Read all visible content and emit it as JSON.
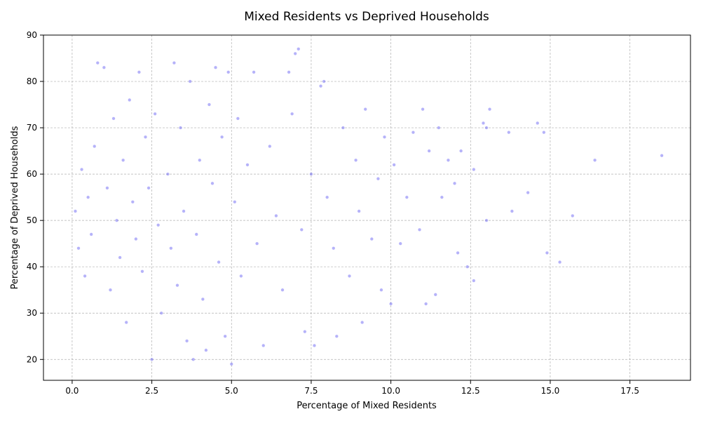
{
  "chart_data": {
    "type": "scatter",
    "title": "Mixed Residents vs Deprived Households",
    "xlabel": "Percentage of Mixed Residents",
    "ylabel": "Percentage of Deprived Households",
    "xlim": [
      -0.9,
      19.4
    ],
    "ylim": [
      15.5,
      90
    ],
    "x_ticks": [
      0.0,
      2.5,
      5.0,
      7.5,
      10.0,
      12.5,
      15.0,
      17.5
    ],
    "x_tick_labels": [
      "0.0",
      "2.5",
      "5.0",
      "7.5",
      "10.0",
      "12.5",
      "15.0",
      "17.5"
    ],
    "y_ticks": [
      20,
      30,
      40,
      50,
      60,
      70,
      80,
      90
    ],
    "y_tick_labels": [
      "20",
      "30",
      "40",
      "50",
      "60",
      "70",
      "80",
      "90"
    ],
    "grid": true,
    "point_color": "#4a45f0",
    "series": [
      {
        "points": [
          [
            0.1,
            52
          ],
          [
            0.2,
            44
          ],
          [
            0.3,
            61
          ],
          [
            0.4,
            38
          ],
          [
            0.5,
            55
          ],
          [
            0.6,
            47
          ],
          [
            0.7,
            66
          ],
          [
            0.8,
            84
          ],
          [
            1.0,
            83
          ],
          [
            1.1,
            57
          ],
          [
            1.2,
            35
          ],
          [
            1.3,
            72
          ],
          [
            1.4,
            50
          ],
          [
            1.5,
            42
          ],
          [
            1.6,
            63
          ],
          [
            1.7,
            28
          ],
          [
            1.8,
            76
          ],
          [
            1.9,
            54
          ],
          [
            2.0,
            46
          ],
          [
            2.1,
            82
          ],
          [
            2.2,
            39
          ],
          [
            2.3,
            68
          ],
          [
            2.4,
            57
          ],
          [
            2.5,
            20
          ],
          [
            2.6,
            73
          ],
          [
            2.7,
            49
          ],
          [
            2.8,
            30
          ],
          [
            3.0,
            60
          ],
          [
            3.1,
            44
          ],
          [
            3.2,
            84
          ],
          [
            3.3,
            36
          ],
          [
            3.4,
            70
          ],
          [
            3.5,
            52
          ],
          [
            3.6,
            24
          ],
          [
            3.7,
            80
          ],
          [
            3.8,
            20
          ],
          [
            3.9,
            47
          ],
          [
            4.0,
            63
          ],
          [
            4.1,
            33
          ],
          [
            4.2,
            22
          ],
          [
            4.3,
            75
          ],
          [
            4.4,
            58
          ],
          [
            4.5,
            83
          ],
          [
            4.6,
            41
          ],
          [
            4.7,
            68
          ],
          [
            4.8,
            25
          ],
          [
            4.9,
            82
          ],
          [
            5.0,
            19
          ],
          [
            5.1,
            54
          ],
          [
            5.2,
            72
          ],
          [
            5.3,
            38
          ],
          [
            5.5,
            62
          ],
          [
            5.7,
            82
          ],
          [
            5.8,
            45
          ],
          [
            6.0,
            23
          ],
          [
            6.2,
            66
          ],
          [
            6.4,
            51
          ],
          [
            6.6,
            35
          ],
          [
            6.8,
            82
          ],
          [
            6.9,
            73
          ],
          [
            7.0,
            86
          ],
          [
            7.1,
            87
          ],
          [
            7.2,
            48
          ],
          [
            7.3,
            26
          ],
          [
            7.5,
            60
          ],
          [
            7.6,
            23
          ],
          [
            7.8,
            79
          ],
          [
            7.9,
            80
          ],
          [
            8.0,
            55
          ],
          [
            8.2,
            44
          ],
          [
            8.3,
            25
          ],
          [
            8.5,
            70
          ],
          [
            8.7,
            38
          ],
          [
            8.9,
            63
          ],
          [
            9.0,
            52
          ],
          [
            9.1,
            28
          ],
          [
            9.2,
            74
          ],
          [
            9.4,
            46
          ],
          [
            9.6,
            59
          ],
          [
            9.7,
            35
          ],
          [
            9.8,
            68
          ],
          [
            10.0,
            32
          ],
          [
            10.1,
            62
          ],
          [
            10.3,
            45
          ],
          [
            10.5,
            55
          ],
          [
            10.7,
            69
          ],
          [
            10.9,
            48
          ],
          [
            11.0,
            74
          ],
          [
            11.1,
            32
          ],
          [
            11.2,
            65
          ],
          [
            11.4,
            34
          ],
          [
            11.5,
            70
          ],
          [
            11.6,
            55
          ],
          [
            11.8,
            63
          ],
          [
            12.0,
            58
          ],
          [
            12.1,
            43
          ],
          [
            12.2,
            65
          ],
          [
            12.4,
            40
          ],
          [
            12.6,
            61
          ],
          [
            12.6,
            37
          ],
          [
            12.9,
            71
          ],
          [
            13.0,
            70
          ],
          [
            13.1,
            74
          ],
          [
            13.0,
            50
          ],
          [
            13.7,
            69
          ],
          [
            13.8,
            52
          ],
          [
            14.3,
            56
          ],
          [
            14.6,
            71
          ],
          [
            14.8,
            69
          ],
          [
            14.9,
            43
          ],
          [
            15.3,
            41
          ],
          [
            15.7,
            51
          ],
          [
            16.4,
            63
          ],
          [
            18.5,
            64
          ]
        ]
      }
    ]
  }
}
